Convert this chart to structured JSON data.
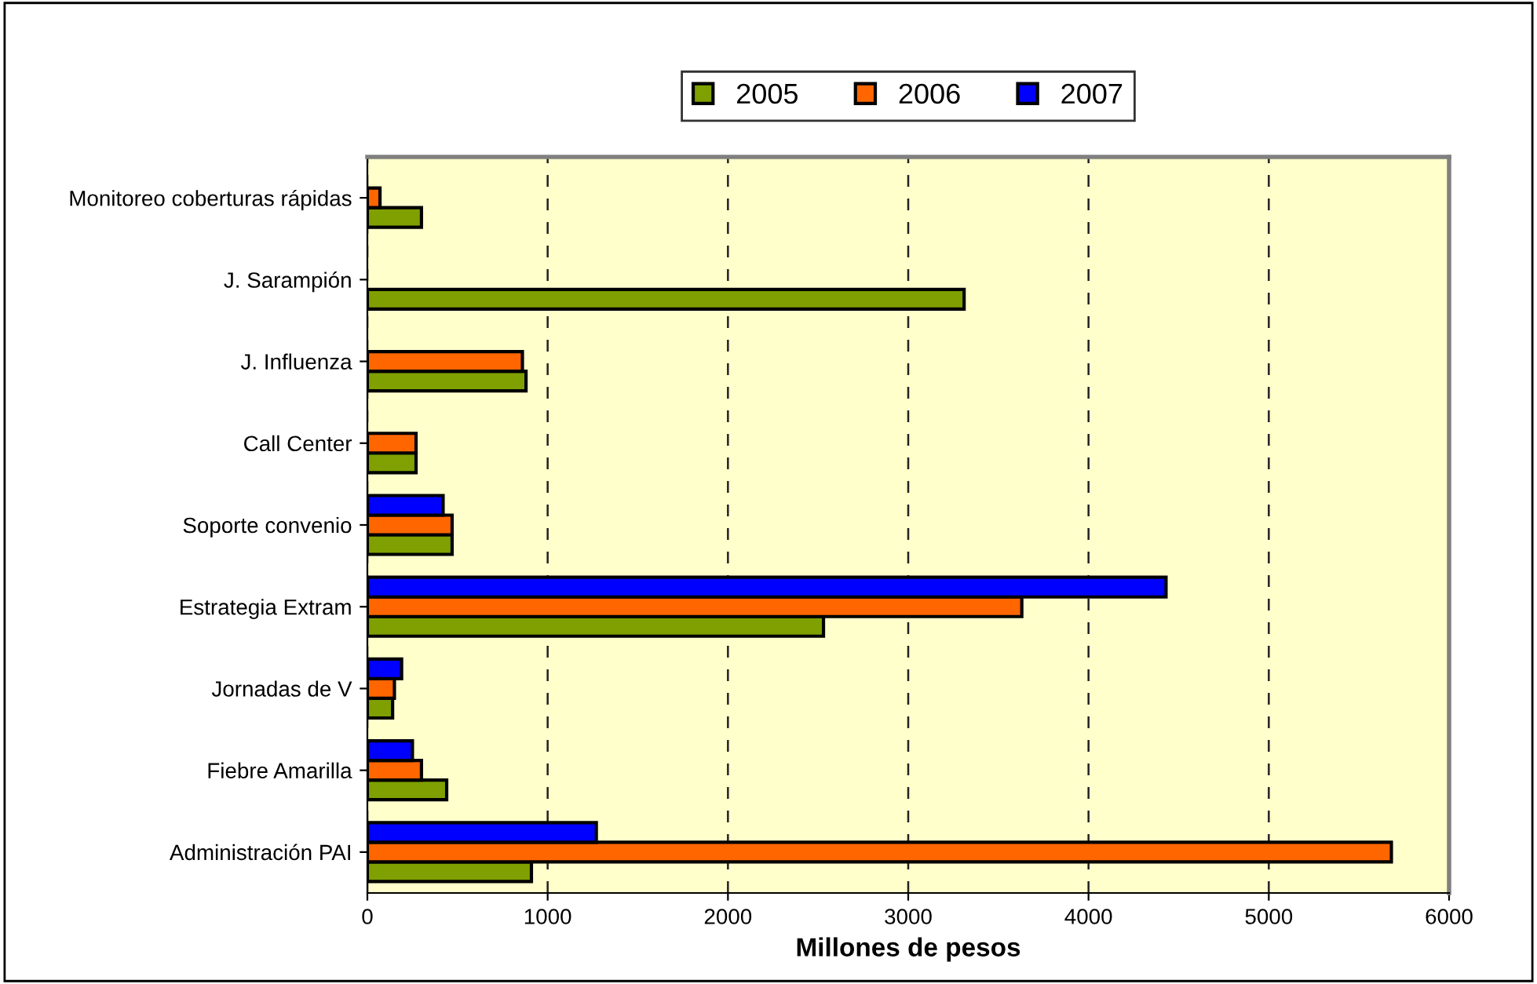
{
  "chart_data": {
    "type": "bar",
    "orientation": "horizontal",
    "xlabel": "Millones de pesos",
    "categories": [
      "Monitoreo coberturas rápidas",
      "J. Sarampión",
      "J. Influenza",
      "Call Center",
      "Soporte convenio",
      "Estrategia Extram",
      "Jornadas de V",
      "Fiebre Amarilla",
      "Administración PAI"
    ],
    "series": [
      {
        "name": "2005",
        "color": "#7fa000",
        "values": [
          300,
          3310,
          880,
          270,
          470,
          2530,
          140,
          440,
          910
        ]
      },
      {
        "name": "2006",
        "color": "#ff6600",
        "values": [
          70,
          null,
          860,
          270,
          470,
          3630,
          150,
          300,
          5680
        ]
      },
      {
        "name": "2007",
        "color": "#0000ff",
        "values": [
          null,
          null,
          null,
          null,
          420,
          4430,
          190,
          250,
          1270
        ]
      }
    ],
    "xlim": [
      0,
      6000
    ],
    "xticks": [
      0,
      1000,
      2000,
      3000,
      4000,
      5000,
      6000
    ],
    "grid": "x",
    "line_style": "dashed",
    "legend": "top"
  }
}
